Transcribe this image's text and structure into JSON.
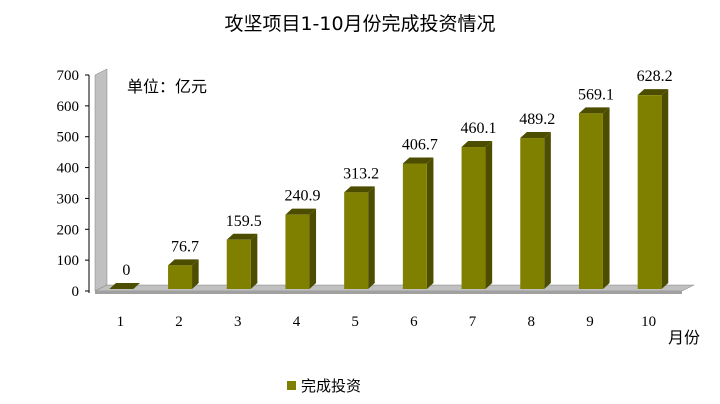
{
  "chart_data": {
    "type": "bar",
    "title": "攻坚项目1-10月份完成投资情况",
    "unit_label": "单位：亿元",
    "xlabel": "月份",
    "ylabel": "",
    "ylim": [
      0,
      700
    ],
    "yticks": [
      0,
      100,
      200,
      300,
      400,
      500,
      600,
      700
    ],
    "categories": [
      "1",
      "2",
      "3",
      "4",
      "5",
      "6",
      "7",
      "8",
      "9",
      "10"
    ],
    "series": [
      {
        "name": "完成投资",
        "values": [
          0,
          76.7,
          159.5,
          240.9,
          313.2,
          406.7,
          460.1,
          489.2,
          569.1,
          628.2
        ],
        "value_labels": [
          "0",
          "76.7",
          "159.5",
          "240.9",
          "313.2",
          "406.7",
          "460.1",
          "489.2",
          "569.1",
          "628.2"
        ],
        "color": "#808000",
        "side_color": "#4d4d00",
        "top_color": "#a6a600"
      }
    ],
    "grid": false,
    "legend_position": "bottom",
    "style": "3d-column"
  }
}
